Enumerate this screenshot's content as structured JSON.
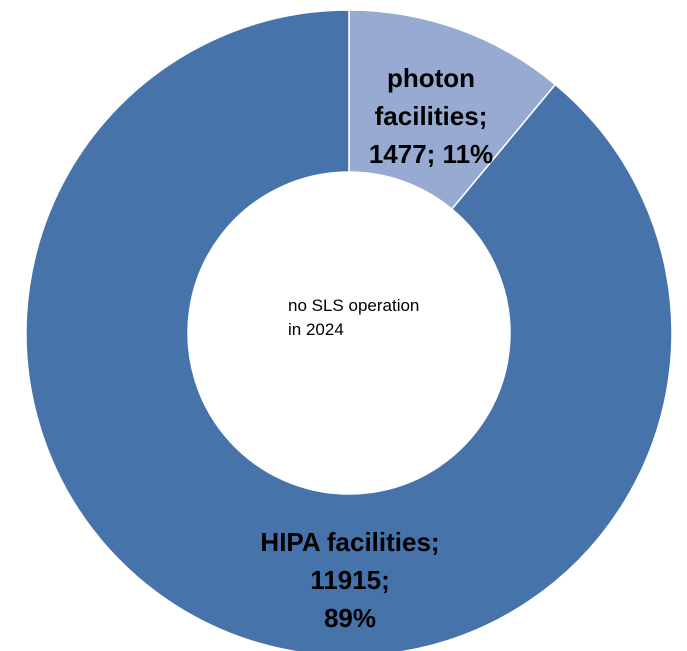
{
  "chart_data": {
    "type": "pie",
    "donut": true,
    "categories": [
      "photon facilities",
      "HIPA facilities"
    ],
    "values": [
      1477,
      11915
    ],
    "percentages": [
      "11%",
      "89%"
    ],
    "colors": [
      "#97aad2",
      "#4673aa"
    ],
    "slice_labels": [
      [
        "photon",
        "facilities;",
        "1477; 11%"
      ],
      [
        "HIPA facilities;",
        "11915;",
        "89%"
      ]
    ],
    "annotation": [
      "no SLS operation",
      "in 2024"
    ],
    "title": "",
    "legend": "none"
  }
}
